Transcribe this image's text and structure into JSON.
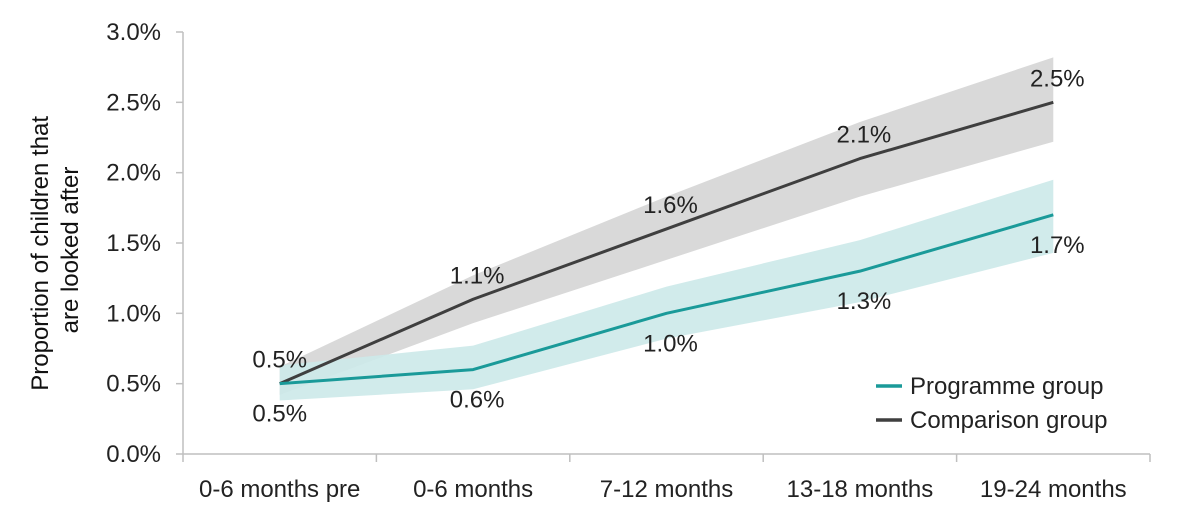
{
  "chart_data": {
    "type": "line",
    "title": "",
    "xlabel": "",
    "ylabel_lines": [
      "Proportion of children that",
      "are looked after"
    ],
    "categories": [
      "0-6 months pre",
      "0-6 months",
      "7-12 months",
      "13-18 months",
      "19-24 months"
    ],
    "ylim": [
      0,
      3.0
    ],
    "yticks": [
      0,
      0.5,
      1.0,
      1.5,
      2.0,
      2.5,
      3.0
    ],
    "ytick_labels": [
      "0.0%",
      "0.5%",
      "1.0%",
      "1.5%",
      "2.0%",
      "2.5%",
      "3.0%"
    ],
    "grid": false,
    "legend_position": "bottom-right",
    "series": [
      {
        "name": "Programme group",
        "color": "#1a9a99",
        "band_color": "#cce9e9",
        "values": [
          0.5,
          0.6,
          1.0,
          1.3,
          1.7
        ],
        "lower": [
          0.38,
          0.46,
          0.82,
          1.08,
          1.43
        ],
        "upper": [
          0.63,
          0.77,
          1.19,
          1.52,
          1.95
        ],
        "labels": [
          "0.5%",
          "0.6%",
          "1.0%",
          "1.3%",
          "1.7%"
        ]
      },
      {
        "name": "Comparison group",
        "color": "#3f3f3f",
        "band_color": "#d9d9d9",
        "values": [
          0.5,
          1.1,
          1.6,
          2.1,
          2.5
        ],
        "lower": [
          0.42,
          0.93,
          1.38,
          1.83,
          2.22
        ],
        "upper": [
          0.62,
          1.27,
          1.83,
          2.36,
          2.82
        ],
        "labels": [
          "0.5%",
          "1.1%",
          "1.6%",
          "2.1%",
          "2.5%"
        ]
      }
    ]
  }
}
